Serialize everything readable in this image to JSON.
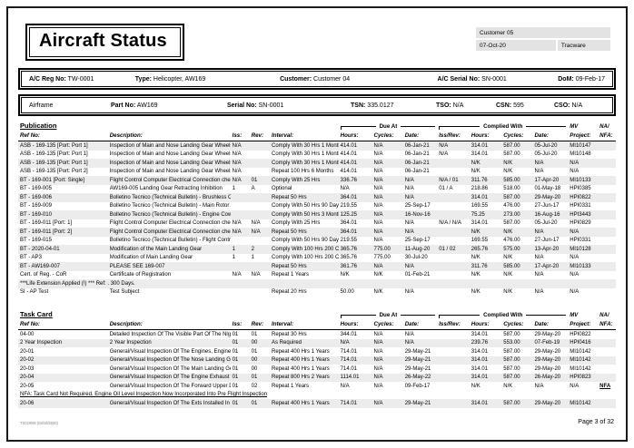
{
  "header": {
    "title": "Aircraft Status",
    "meta": {
      "customer": "Customer 05",
      "date": "07-Oct-20",
      "app": "Tracware"
    }
  },
  "info1": {
    "reg_label": "A/C Reg No:",
    "reg": "TW-0001",
    "type_label": "Type:",
    "type": "Helicopter, AW169",
    "customer_label": "Customer:",
    "customer": "Customer 04",
    "serial_label": "A/C Serial No:",
    "serial": "SN-0001",
    "dom_label": "DoM:",
    "dom": "09-Feb-17"
  },
  "info2": {
    "name": "Airframe",
    "part_label": "Part No:",
    "part": "AW169",
    "serial_label": "Serial No:",
    "serial": "SN-0001",
    "tsn_label": "TSN:",
    "tsn": "335.0127",
    "tso_label": "TSO:",
    "tso": "N/A",
    "csn_label": "CSN:",
    "csn": "595",
    "cso_label": "CSO:",
    "cso": "N/A"
  },
  "columns": {
    "refno": "Ref No:",
    "description": "Description:",
    "iss": "Iss:",
    "rev": "Rev:",
    "interval": "Interval:",
    "hours": "Hours:",
    "cycles": "Cycles:",
    "date": "Date:",
    "issrev": "Iss/Rev:",
    "project": "Project:",
    "nfa": "NFA:",
    "due_at": "Due At",
    "complied_with": "Complied With",
    "mv": "MV",
    "na": "NA/"
  },
  "publication": {
    "title": "Publication",
    "rows": [
      {
        "shade": true,
        "cells": [
          "ASB - 169-135 [Port: Port 1]",
          "Inspection of Main and Nose Landing Gear Wheels.",
          "N/A",
          "",
          "Comply With 30 Hrs 1 Month",
          "414.01",
          "N/A",
          "06-Jan-21",
          "N/A",
          "314.01",
          "587.00",
          "05-Jul-20",
          "MI10147",
          ""
        ]
      },
      {
        "shade": false,
        "cells": [
          "ASB - 169-135 [Port: Port 1]",
          "Inspection of Main and Nose Landing Gear Wheels.",
          "N/A",
          "",
          "Comply With 30 Hrs 1 Month",
          "414.01",
          "N/A",
          "06-Jan-21",
          "N/A",
          "314.01",
          "587.00",
          "05-Jul-20",
          "MI10148",
          ""
        ]
      },
      {
        "shade": true,
        "cells": [
          "ASB - 169-135 [Port: Port 1]",
          "Inspection of Main and Nose Landing Gear Wheels.",
          "N/A",
          "",
          "Comply With 30 Hrs 1 Month",
          "414.01",
          "N/A",
          "06-Jan-21",
          "",
          "N/K",
          "N/K",
          "N/A",
          "N/A",
          ""
        ]
      },
      {
        "shade": false,
        "cells": [
          "ASB - 169-135 [Port: Port 2]",
          "Inspection of Main and Nose Landing Gear Wheels.",
          "N/A",
          "",
          "Repeat 100 Hrs 6 Months",
          "414.01",
          "N/A",
          "06-Jan-21",
          "",
          "N/K",
          "N/K",
          "N/A",
          "N/A",
          ""
        ]
      },
      {
        "shade": true,
        "cells": [
          "BT - 169-001 [Port: Single]",
          "Flight Control Computer Electrical Connection check.",
          "N/A",
          "01",
          "Comply With 25 Hrs",
          "336.76",
          "N/A",
          "N/A",
          "N/A / 01",
          "311.76",
          "585.00",
          "17-Apr-20",
          "MI10133",
          ""
        ]
      },
      {
        "shade": false,
        "cells": [
          "BT - 169-005",
          "AW169-005 Landing Gear Retracting Inhibition",
          "1",
          "A",
          "Optional",
          "N/A",
          "N/A",
          "N/A",
          "01 / A",
          "218.86",
          "518.00",
          "01-May-18",
          "HPI0385",
          ""
        ]
      },
      {
        "shade": true,
        "cells": [
          "BT - 169-006",
          "Bolletino Tecnico (Technical Bulletin) - Brushless Control U",
          "",
          "",
          "Repeat 50 Hrs",
          "364.01",
          "N/A",
          "N/A",
          "",
          "314.01",
          "587.00",
          "29-May-20",
          "HPI0822",
          ""
        ]
      },
      {
        "shade": false,
        "cells": [
          "BT - 169-009",
          "Bolletino Tecnico (Technical Bulletin) - Main Rotor Actuator",
          "",
          "",
          "Comply With 50 Hrs 90 Days",
          "219.55",
          "N/A",
          "25-Sep-17",
          "",
          "169.55",
          "476.00",
          "27-Jun-17",
          "HPI0331",
          ""
        ]
      },
      {
        "shade": true,
        "cells": [
          "BT - 169-010",
          "Bolletino Tecnico (Technical Bulletin) - Engine Cowling Pre",
          "",
          "",
          "Comply With 50 Hrs 3 Month",
          "125.25",
          "N/A",
          "16-Nov-16",
          "",
          "75.25",
          "273.00",
          "16-Aug-16",
          "HPI3443",
          ""
        ]
      },
      {
        "shade": false,
        "cells": [
          "BT - 169-011 [Port: 1]",
          "Flight Control Computer Electrical Connection check.",
          "N/A",
          "N/A",
          "Comply With 25 Hrs",
          "364.01",
          "N/A",
          "N/A",
          "N/A / N/A",
          "314.01",
          "587.00",
          "05-Jul-20",
          "HPI0829",
          ""
        ]
      },
      {
        "shade": true,
        "cells": [
          "BT - 169-011 [Port: 2]",
          "Flight Control Computer Electrical Connection check.",
          "N/A",
          "N/A",
          "Repeat 50 Hrs",
          "364.01",
          "N/A",
          "N/A",
          "",
          "N/K",
          "N/K",
          "N/A",
          "N/A",
          ""
        ]
      },
      {
        "shade": false,
        "cells": [
          "BT - 169-015",
          "Bolletino Tecnico (Technical Bulletin) - Flight Control Comp",
          "",
          "",
          "Comply With 50 Hrs 90 Days",
          "219.55",
          "N/A",
          "25-Sep-17",
          "",
          "169.55",
          "476.00",
          "27-Jun-17",
          "HPI0331",
          ""
        ]
      },
      {
        "shade": true,
        "cells": [
          "BT - 2020-04-01",
          "Modification of the Main Landing Gear",
          "1",
          "2",
          "Comply With 100 Hrs 200 Cy",
          "365.76",
          "775.00",
          "11-Aug-20",
          "01 / 02",
          "265.76",
          "575.00",
          "13-Apr-20",
          "MI10128",
          ""
        ]
      },
      {
        "shade": false,
        "cells": [
          "BT - AP3",
          "Modification of Main Landing Gear",
          "1",
          "1",
          "Comply With 100 Hrs 200 Cy",
          "365.76",
          "775.00",
          "30-Jul-20",
          "",
          "N/K",
          "N/K",
          "N/A",
          "N/A",
          ""
        ]
      },
      {
        "shade": true,
        "cells": [
          "BT - AW169-007",
          "PLEASE SEE 169-007",
          "",
          "",
          "Repeat 50 Hrs",
          "361.76",
          "N/A",
          "N/A",
          "",
          "311.76",
          "585.00",
          "17-Apr-20",
          "MI10133",
          ""
        ]
      },
      {
        "shade": false,
        "cells": [
          "Cert. of Reg. - CoR",
          "Certificate of Registration",
          "N/A",
          "N/A",
          "Repeat 1 Years",
          "N/K",
          "N/K",
          "01-Feb-21",
          "",
          "N/K",
          "N/K",
          "N/A",
          "N/A",
          ""
        ]
      },
      {
        "shade": true,
        "note": "***Life Extension Applied (!) *** Ref: . 300 Days.",
        "underline": false
      },
      {
        "shade": false,
        "cells": [
          "SI - AP Test",
          "Test Subject",
          "",
          "",
          "Repeat 20 Hrs",
          "50.00",
          "N/K",
          "N/A",
          "",
          "N/K",
          "N/K",
          "N/A",
          "N/A",
          ""
        ]
      }
    ]
  },
  "taskcard": {
    "title": "Task Card",
    "rows": [
      {
        "shade": false,
        "cells": [
          "04-00",
          "Detailed Inspection Of The Visible Part Of The Nlg Wheels",
          "01",
          "01",
          "Repeat 30 Hrs",
          "344.01",
          "N/A",
          "N/A",
          "",
          "314.01",
          "587.00",
          "29-May-20",
          "HPI0822",
          ""
        ]
      },
      {
        "shade": true,
        "cells": [
          "2 Year Inspection",
          "2 Year Inspection",
          "01",
          "00",
          "As Required",
          "N/A",
          "N/A",
          "N/A",
          "",
          "239.76",
          "553.00",
          "07-Feb-19",
          "HPI0416",
          ""
        ]
      },
      {
        "shade": false,
        "cells": [
          "20-01",
          "General/Visual Inspection Of The Engines, Engine Comport",
          "01",
          "01",
          "Repeat 400 Hrs 1 Years",
          "714.01",
          "N/A",
          "29-May-21",
          "",
          "314.01",
          "587.00",
          "29-May-20",
          "MI10142",
          ""
        ]
      },
      {
        "shade": true,
        "cells": [
          "20-02",
          "General/Visual Inspection Of The Nose Landing Gear And",
          "01",
          "00",
          "Repeat 400 Hrs 1 Years",
          "714.01",
          "N/A",
          "29-May-21",
          "",
          "314.01",
          "587.00",
          "29-May-20",
          "MI10142",
          ""
        ]
      },
      {
        "shade": false,
        "cells": [
          "20-03",
          "General/Visual Inspection Of The Main Landing Gear And",
          "01",
          "00",
          "Repeat 400 Hrs 1 Years",
          "714.01",
          "N/A",
          "29-May-21",
          "",
          "314.01",
          "587.00",
          "29-May-20",
          "MI10142",
          ""
        ]
      },
      {
        "shade": true,
        "cells": [
          "20-04",
          "General/Visual Inspection Of The Engine Exhaust Comport",
          "01",
          "01",
          "Repeat 800 Hrs 2 Years",
          "1114.01",
          "N/A",
          "26-May-22",
          "",
          "314.01",
          "587.00",
          "26-May-20",
          "HPI0823",
          ""
        ]
      },
      {
        "shade": false,
        "cells": [
          "20-05",
          "General/Visual Inspection Of The  Forward Upper Deck Fair",
          "01",
          "02",
          "Repeat 1 Years",
          "N/A",
          "N/A",
          "09-Feb-17",
          "",
          "N/K",
          "N/K",
          "N/A",
          "N/A",
          "NFA"
        ]
      },
      {
        "shade": false,
        "note": "NFA: Task Card Not Required. Engine Oil Level Inspection Now Incorporated Into Pre Flight Inspection",
        "underline": true
      },
      {
        "shade": true,
        "cells": [
          "20-06",
          "General/Visual Inspection Of The Exts Installed In The Engi",
          "01",
          "01",
          "Repeat 400 Hrs 1 Years",
          "714.01",
          "N/A",
          "29-May-21",
          "",
          "314.01",
          "587.00",
          "29-May-20",
          "MI10142",
          ""
        ]
      }
    ]
  },
  "footer": {
    "doc_ref": "TSC0006 (03/10/2020)",
    "page": "Page 3 of 32"
  }
}
